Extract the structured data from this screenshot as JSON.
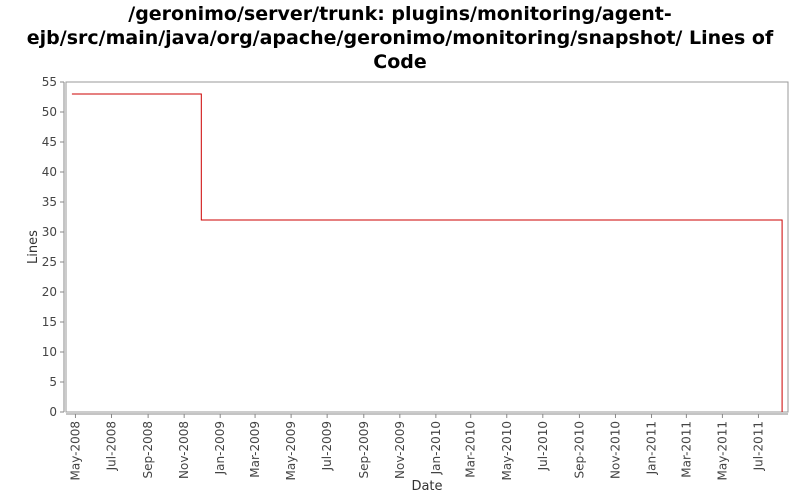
{
  "chart_data": {
    "type": "line",
    "title_lines": [
      "/geronimo/server/trunk: plugins/monitoring/agent-",
      "ejb/src/main/java/org/apache/geronimo/monitoring/snapshot/ Lines of",
      "Code"
    ],
    "xlabel": "Date",
    "ylabel": "Lines",
    "ylim": [
      0,
      55
    ],
    "yticks": [
      0,
      5,
      10,
      15,
      20,
      25,
      30,
      35,
      40,
      45,
      50,
      55
    ],
    "xlim": [
      "2008-04-15",
      "2011-08-20"
    ],
    "xticks": [
      {
        "date": "2008-05-01",
        "label": "May-2008"
      },
      {
        "date": "2008-07-01",
        "label": "Jul-2008"
      },
      {
        "date": "2008-09-01",
        "label": "Sep-2008"
      },
      {
        "date": "2008-11-01",
        "label": "Nov-2008"
      },
      {
        "date": "2009-01-01",
        "label": "Jan-2009"
      },
      {
        "date": "2009-03-01",
        "label": "Mar-2009"
      },
      {
        "date": "2009-05-01",
        "label": "May-2009"
      },
      {
        "date": "2009-07-01",
        "label": "Jul-2009"
      },
      {
        "date": "2009-09-01",
        "label": "Sep-2009"
      },
      {
        "date": "2009-11-01",
        "label": "Nov-2009"
      },
      {
        "date": "2010-01-01",
        "label": "Jan-2010"
      },
      {
        "date": "2010-03-01",
        "label": "Mar-2010"
      },
      {
        "date": "2010-05-01",
        "label": "May-2010"
      },
      {
        "date": "2010-07-01",
        "label": "Jul-2010"
      },
      {
        "date": "2010-09-01",
        "label": "Sep-2010"
      },
      {
        "date": "2010-11-01",
        "label": "Nov-2010"
      },
      {
        "date": "2011-01-01",
        "label": "Jan-2011"
      },
      {
        "date": "2011-03-01",
        "label": "Mar-2011"
      },
      {
        "date": "2011-05-01",
        "label": "May-2011"
      },
      {
        "date": "2011-07-01",
        "label": "Jul-2011"
      }
    ],
    "series": [
      {
        "color": "#cc0000",
        "step": true,
        "points": [
          {
            "x": "2008-04-25",
            "y": 53
          },
          {
            "x": "2008-11-30",
            "y": 32
          },
          {
            "x": "2011-08-10",
            "y": 32
          },
          {
            "x": "2011-08-10",
            "y": 0
          }
        ]
      }
    ],
    "grid": false,
    "legend": "none"
  }
}
